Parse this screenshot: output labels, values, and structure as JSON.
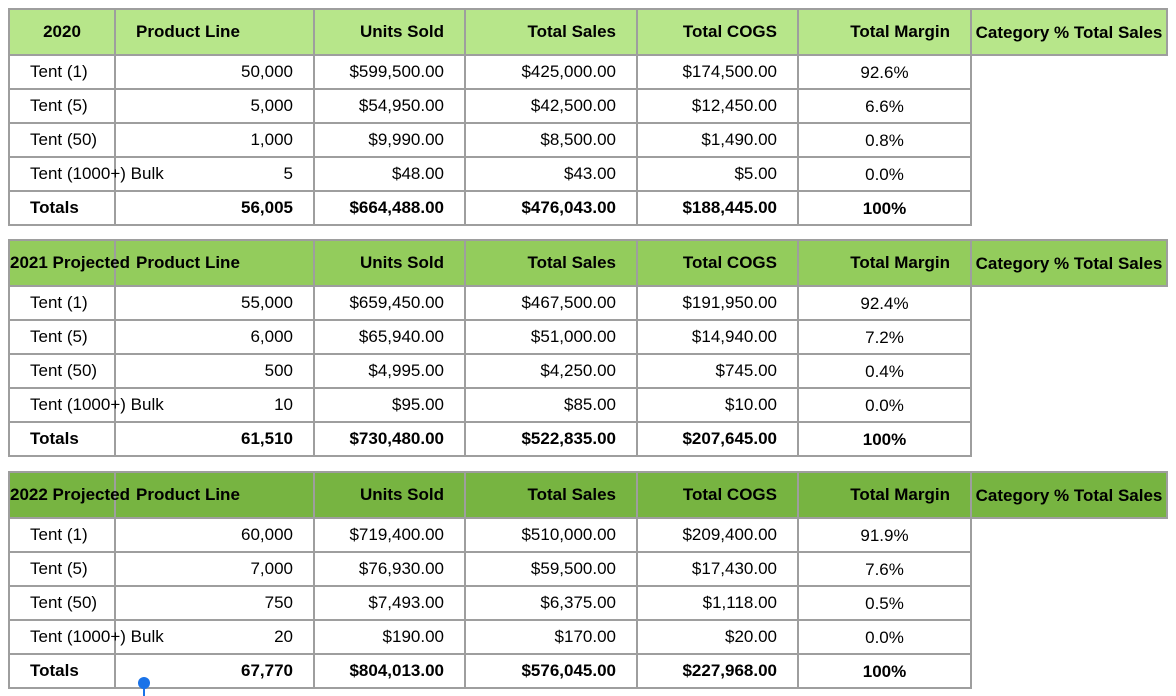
{
  "headers": [
    "Product Line",
    "Units Sold",
    "Total Sales",
    "Total COGS",
    "Total Margin",
    "Category % Total Sales"
  ],
  "tables": [
    {
      "year_label": "2020",
      "colors": {
        "year_bg": "#b7e68a",
        "header_bg": "#b7e68a"
      },
      "rows": [
        [
          "Tent (1)",
          "50,000",
          "$599,500.00",
          "$425,000.00",
          "$174,500.00",
          "92.6%"
        ],
        [
          "Tent (5)",
          "5,000",
          "$54,950.00",
          "$42,500.00",
          "$12,450.00",
          "6.6%"
        ],
        [
          "Tent (50)",
          "1,000",
          "$9,990.00",
          "$8,500.00",
          "$1,490.00",
          "0.8%"
        ],
        [
          "Tent (1000+) Bulk",
          "5",
          "$48.00",
          "$43.00",
          "$5.00",
          "0.0%"
        ]
      ],
      "totals": [
        "Totals",
        "56,005",
        "$664,488.00",
        "$476,043.00",
        "$188,445.00",
        "100%"
      ]
    },
    {
      "year_label": "2021 Projected",
      "colors": {
        "year_bg": "#93cc5c",
        "header_bg": "#93cc5c"
      },
      "rows": [
        [
          "Tent (1)",
          "55,000",
          "$659,450.00",
          "$467,500.00",
          "$191,950.00",
          "92.4%"
        ],
        [
          "Tent (5)",
          "6,000",
          "$65,940.00",
          "$51,000.00",
          "$14,940.00",
          "7.2%"
        ],
        [
          "Tent (50)",
          "500",
          "$4,995.00",
          "$4,250.00",
          "$745.00",
          "0.4%"
        ],
        [
          "Tent (1000+) Bulk",
          "10",
          "$95.00",
          "$85.00",
          "$10.00",
          "0.0%"
        ]
      ],
      "totals": [
        "Totals",
        "61,510",
        "$730,480.00",
        "$522,835.00",
        "$207,645.00",
        "100%"
      ]
    },
    {
      "year_label": "2022 Projected",
      "colors": {
        "year_bg": "#77b441",
        "header_bg": "#77b441"
      },
      "rows": [
        [
          "Tent (1)",
          "60,000",
          "$719,400.00",
          "$510,000.00",
          "$209,400.00",
          "91.9%"
        ],
        [
          "Tent (5)",
          "7,000",
          "$76,930.00",
          "$59,500.00",
          "$17,430.00",
          "7.6%"
        ],
        [
          "Tent (50)",
          "750",
          "$7,493.00",
          "$6,375.00",
          "$1,118.00",
          "0.5%"
        ],
        [
          "Tent (1000+) Bulk",
          "20",
          "$190.00",
          "$170.00",
          "$20.00",
          "0.0%"
        ]
      ],
      "totals": [
        "Totals",
        "67,770",
        "$804,013.00",
        "$576,045.00",
        "$227,968.00",
        "100%"
      ]
    }
  ]
}
